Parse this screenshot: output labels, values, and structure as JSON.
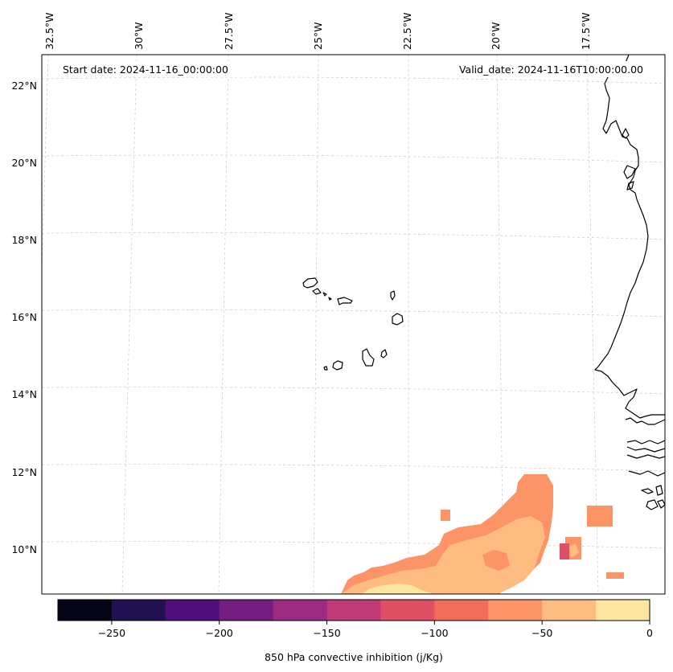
{
  "map": {
    "start_date": "Start date: 2024-11-16_00:00:00",
    "valid_date": "Valid_date: 2024-11-16T10:00:00.00",
    "lon_labels": [
      "32.5°W",
      "30°W",
      "27.5°W",
      "25°W",
      "22.5°W",
      "20°W",
      "17.5°W"
    ],
    "lat_labels": [
      "22°N",
      "20°N",
      "18°N",
      "16°N",
      "14°N",
      "12°N",
      "10°N"
    ]
  },
  "colorbar": {
    "title": "850 hPa convective inhibition (j/Kg)",
    "tick_labels": [
      "−250",
      "−200",
      "−150",
      "−100",
      "−50",
      "0"
    ],
    "ticks": [
      -250,
      -200,
      -150,
      -100,
      -50,
      0
    ],
    "range": [
      -275,
      0
    ],
    "levels": [
      -275,
      -250,
      -225,
      -200,
      -175,
      -150,
      -125,
      -100,
      -75,
      -50,
      -25,
      0
    ],
    "colors": [
      "#050417",
      "#221150",
      "#4e0f7c",
      "#751d81",
      "#9a2b81",
      "#bf3a76",
      "#e05064",
      "#f26c5c",
      "#fd9468",
      "#febc80",
      "#fde6a2"
    ]
  }
}
